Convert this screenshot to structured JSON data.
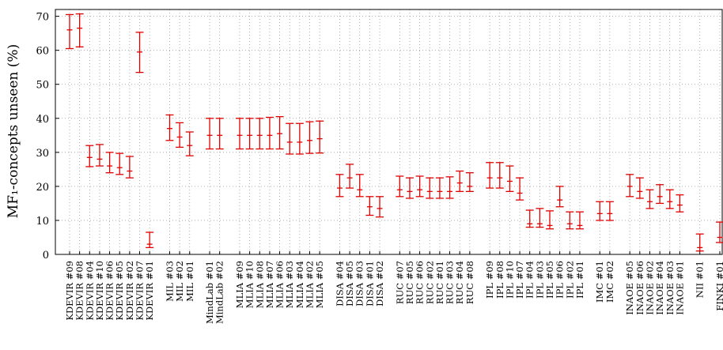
{
  "chart_data": {
    "type": "errorbar",
    "y_label": "MF₁-concepts unseen (%)",
    "color": "#e00000",
    "grid": true,
    "ylim": [
      0,
      72
    ],
    "yticks": [
      0,
      10,
      20,
      30,
      40,
      50,
      60,
      70
    ],
    "categories": [
      "KDEVIR #09",
      "KDEVIR #08",
      "KDEVIR #04",
      "KDEVIR #10",
      "KDEVIR #06",
      "KDEVIR #05",
      "KDEVIR #02",
      "KDEVIR #07",
      "KDEVIR #01",
      null,
      "MIL #03",
      "MIL #02",
      "MIL #01",
      null,
      "MindLab #01",
      "MindLab #02",
      null,
      "MLIA #09",
      "MLIA #10",
      "MLIA #08",
      "MLIA #07",
      "MLIA #06",
      "MLIA #03",
      "MLIA #04",
      "MLIA #02",
      "MLIA #05",
      null,
      "DISA #04",
      "DISA #05",
      "DISA #03",
      "DISA #01",
      "DISA #02",
      null,
      "RUC #07",
      "RUC #05",
      "RUC #06",
      "RUC #02",
      "RUC #01",
      "RUC #03",
      "RUC #04",
      "RUC #08",
      null,
      "IPL #09",
      "IPL #08",
      "IPL #10",
      "IPL #07",
      "IPL #04",
      "IPL #03",
      "IPL #05",
      "IPL #06",
      "IPL #02",
      "IPL #01",
      null,
      "IMC #01",
      "IMC #02",
      null,
      "INAOE #05",
      "INAOE #06",
      "INAOE #02",
      "INAOE #04",
      "INAOE #03",
      "INAOE #01",
      null,
      "NII #01",
      null,
      "FINKI #01"
    ],
    "values": [
      66,
      66.5,
      28.5,
      28,
      26,
      25.5,
      24.5,
      59.5,
      3,
      null,
      37,
      34.5,
      32,
      null,
      35,
      35,
      null,
      35,
      35,
      35,
      35,
      35.5,
      33,
      33,
      33.5,
      34,
      null,
      19.5,
      22.5,
      19,
      14,
      13.5,
      null,
      19,
      18.5,
      19,
      18.5,
      18.5,
      18.5,
      21,
      20,
      null,
      22.5,
      22.5,
      21.5,
      18,
      9,
      9,
      8.5,
      16,
      9,
      8.5,
      null,
      12,
      12,
      null,
      20,
      18.5,
      15.5,
      17,
      15.5,
      14.5,
      null,
      2,
      null,
      5
    ],
    "lower": [
      60.5,
      61,
      25.8,
      26,
      24,
      23.5,
      22.5,
      53.5,
      2,
      null,
      33.5,
      31.5,
      29,
      null,
      31,
      31,
      null,
      31,
      31,
      31,
      31,
      31,
      29.5,
      29.5,
      29.7,
      29.8,
      null,
      17,
      19.5,
      17,
      11.5,
      11,
      null,
      17,
      16.5,
      17,
      16.5,
      16.5,
      16.5,
      18.5,
      18.5,
      null,
      19.5,
      19.5,
      18.5,
      16,
      8,
      8,
      7.5,
      14,
      7.5,
      7.5,
      null,
      10,
      10,
      null,
      17,
      16.5,
      13.5,
      15,
      13.5,
      12.5,
      null,
      1,
      null,
      3.5
    ],
    "upper": [
      70.5,
      70.7,
      32,
      32.3,
      30,
      29.7,
      28.8,
      65.3,
      6.5,
      null,
      41,
      38.7,
      36,
      null,
      40,
      40,
      null,
      40,
      40,
      40,
      40.3,
      40.5,
      38.5,
      38.5,
      39,
      39.2,
      null,
      23.5,
      26.5,
      23.5,
      17,
      17,
      null,
      23,
      22.5,
      23,
      22.5,
      22.5,
      22.8,
      24.5,
      24,
      null,
      27,
      27,
      26,
      22.5,
      13,
      13.5,
      12.8,
      20,
      12.5,
      12.5,
      null,
      15.5,
      15.5,
      null,
      23.5,
      22.5,
      19,
      20.5,
      19,
      17.5,
      null,
      6,
      null,
      9.5
    ]
  }
}
